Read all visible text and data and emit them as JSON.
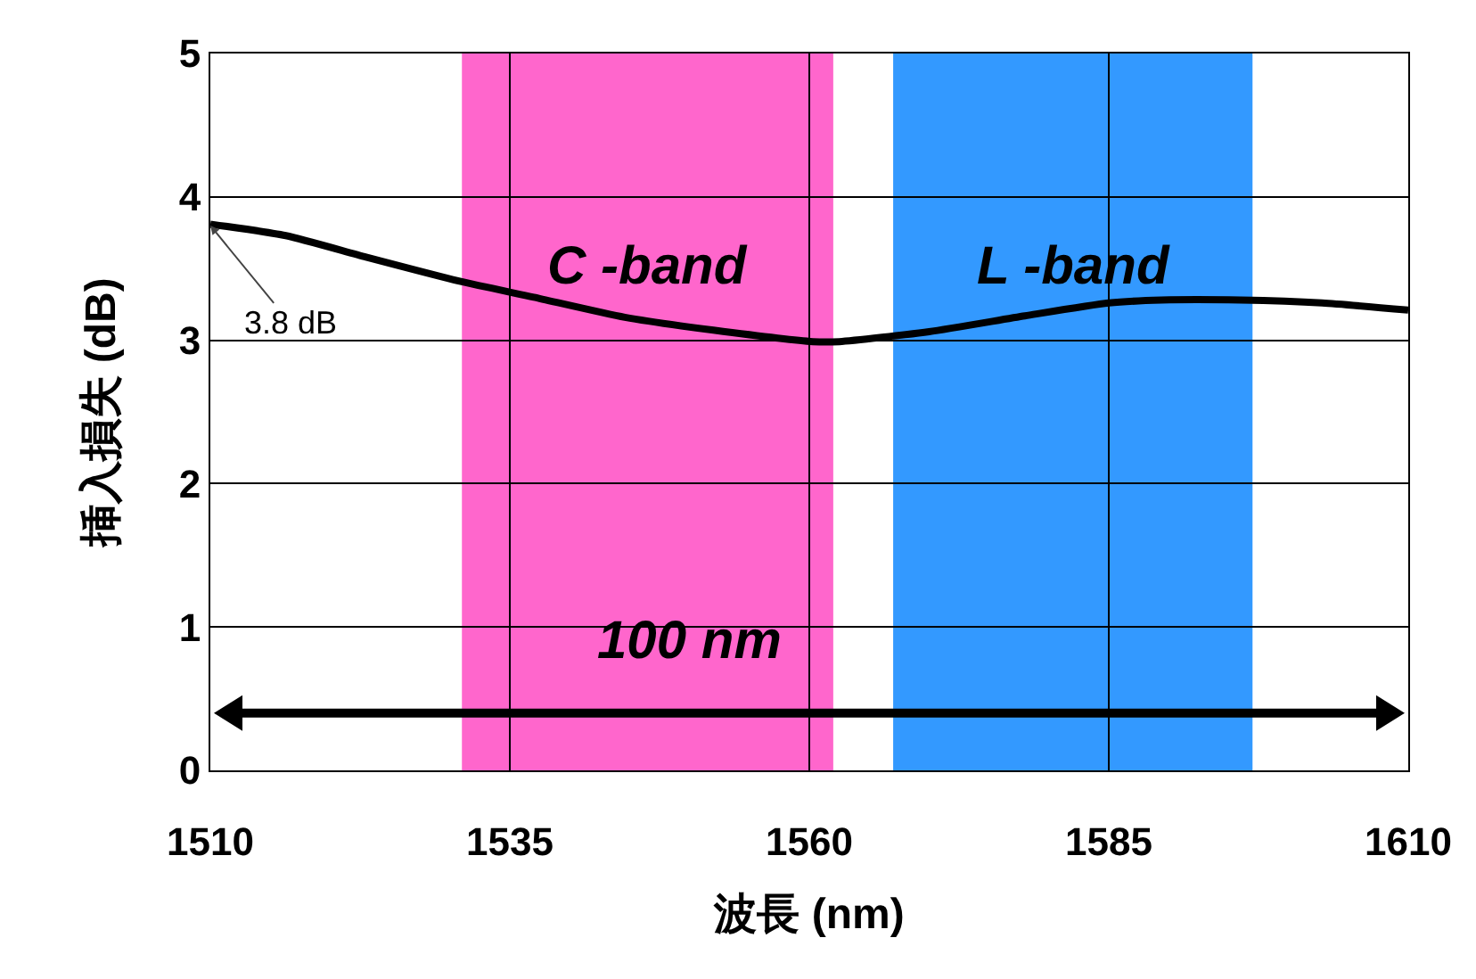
{
  "chart_data": {
    "type": "line",
    "xlabel": "波長 (nm)",
    "ylabel": "挿入損失 (dB)",
    "x": [
      1510,
      1516.3,
      1523,
      1530.9,
      1537,
      1544.6,
      1552,
      1560.3,
      1562.5,
      1570,
      1578,
      1585,
      1589.4,
      1596,
      1602.8,
      1610
    ],
    "series": [
      {
        "color": "#000000",
        "values": [
          3.81,
          3.73,
          3.58,
          3.41,
          3.3,
          3.16,
          3.07,
          2.99,
          2.99,
          3.06,
          3.17,
          3.26,
          3.28,
          3.28,
          3.26,
          3.21
        ]
      }
    ],
    "xlim": [
      1510,
      1610
    ],
    "xticks": [
      1510,
      1535,
      1560,
      1585,
      1610
    ],
    "ylim": [
      0,
      5
    ],
    "yticks": [
      0,
      1,
      2,
      3,
      4,
      5
    ],
    "grid": true,
    "marker": "none",
    "line_style": "solid",
    "bands": [
      {
        "axis": "x",
        "from": 1531,
        "to": 1562,
        "label": "C -band",
        "color": "#ff66cc"
      },
      {
        "axis": "x",
        "from": 1567,
        "to": 1597,
        "label": "L -band",
        "color": "#3399ff"
      }
    ],
    "annotations": [
      {
        "text": "3.8 dB",
        "x": 1510,
        "y": 3.8
      },
      "100 nm"
    ]
  }
}
